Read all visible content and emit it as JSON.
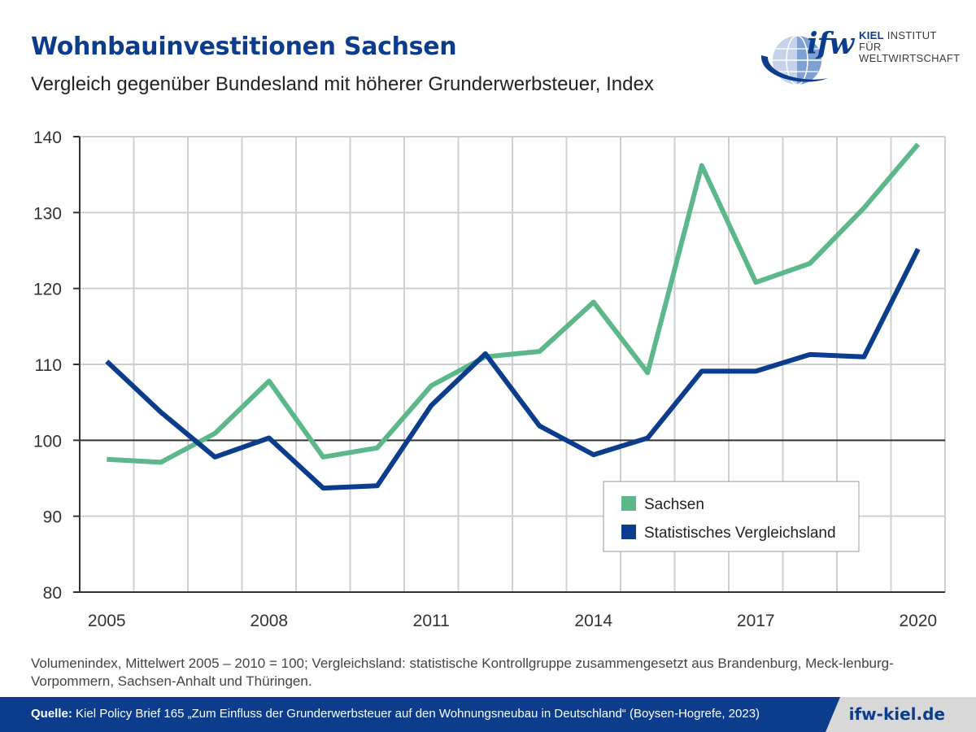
{
  "header": {
    "title": "Wohnbauinvestitionen Sachsen",
    "subtitle": "Vergleich gegenüber Bundesland mit höherer Grunderwerbsteuer, Index"
  },
  "logo": {
    "mark": "ifw",
    "line1_bold": "KIEL",
    "line1_rest": " INSTITUT FÜR",
    "line2": "WELTWIRTSCHAFT"
  },
  "chart_data": {
    "type": "line",
    "x": [
      2005,
      2006,
      2007,
      2008,
      2009,
      2010,
      2011,
      2012,
      2013,
      2014,
      2015,
      2016,
      2017,
      2018,
      2019,
      2020
    ],
    "xticks": [
      "2005",
      "2008",
      "2011",
      "2014",
      "2017",
      "2020"
    ],
    "xlim": [
      2005,
      2020
    ],
    "ylim": [
      80,
      140
    ],
    "yticks": [
      "80",
      "90",
      "100",
      "110",
      "120",
      "130",
      "140"
    ],
    "reference_line": 100,
    "grid": true,
    "legend_position": "lower-right",
    "series": [
      {
        "name": "Sachsen",
        "color": "#5cb88a",
        "values": [
          97.5,
          97.1,
          100.9,
          107.8,
          97.8,
          99.0,
          107.2,
          111.0,
          111.7,
          118.2,
          108.9,
          136.2,
          120.8,
          123.3,
          130.6,
          139.0
        ]
      },
      {
        "name": "Statistisches Vergleichsland",
        "color": "#0b3d8c",
        "values": [
          110.4,
          103.7,
          97.8,
          100.3,
          93.7,
          94.0,
          104.6,
          111.4,
          101.9,
          98.1,
          100.3,
          109.1,
          109.1,
          111.3,
          111.0,
          125.2
        ]
      }
    ]
  },
  "note": "Volumenindex, Mittelwert 2005 – 2010 = 100; Vergleichsland: statistische Kontrollgruppe zusammengesetzt aus Brandenburg, Meck-lenburg-Vorpommern, Sachsen-Anhalt und Thüringen.",
  "footer": {
    "source_label": "Quelle:",
    "source_text": " Kiel Policy Brief 165 „Zum Einfluss der Grunderwerbsteuer auf den Wohnungsneubau in Deutschland“ (Boysen-Hogrefe, 2023)",
    "url": "ifw-kiel.de"
  },
  "colors": {
    "brand_blue": "#0b3d8c",
    "green": "#5cb88a",
    "grid": "#cfcfcf",
    "reference": "#333333"
  }
}
